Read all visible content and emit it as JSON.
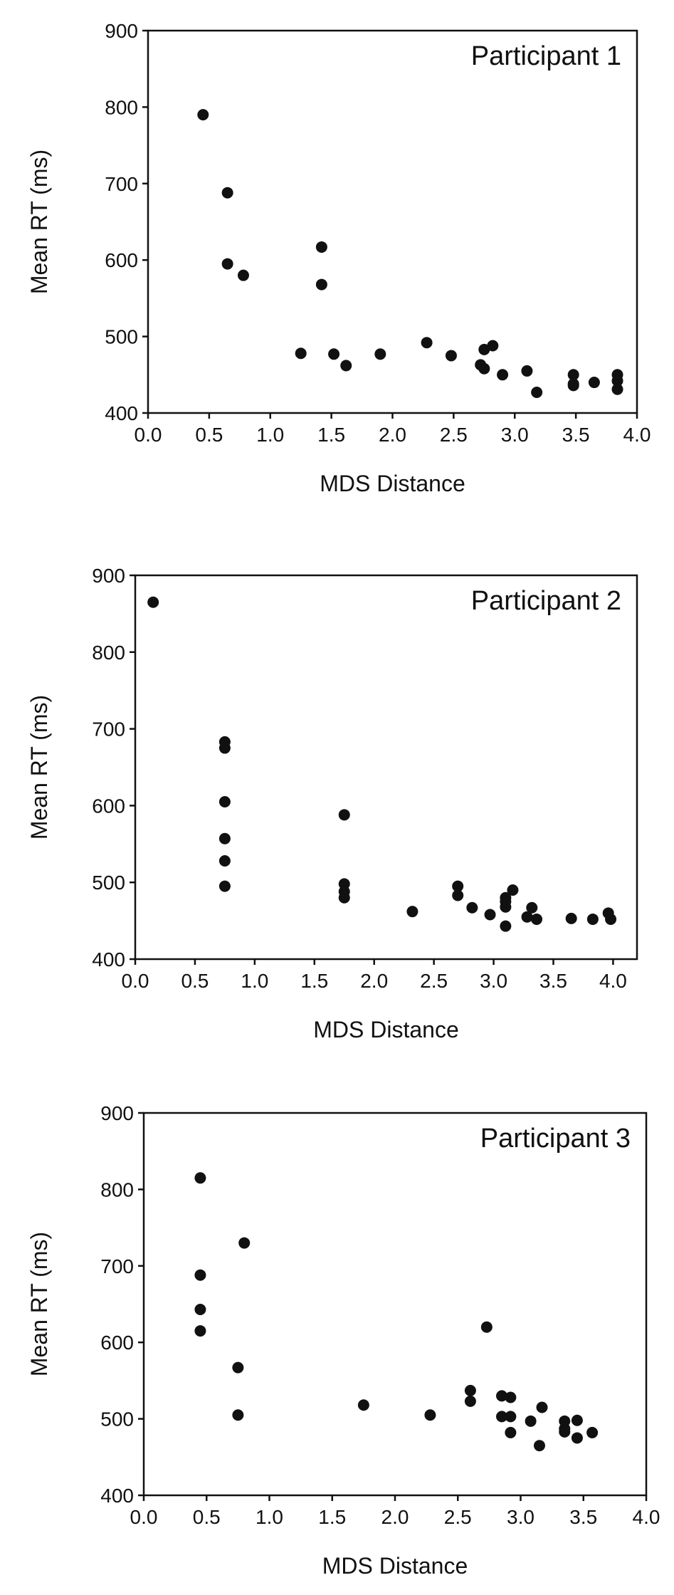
{
  "chart_data": [
    {
      "type": "scatter",
      "title": "Participant 1",
      "xlabel": "MDS Distance",
      "ylabel": "Mean RT (ms)",
      "xlim": [
        0,
        4
      ],
      "ylim": [
        400,
        900
      ],
      "xticks": [
        "0.0",
        "0.5",
        "1.0",
        "1.5",
        "2.0",
        "2.5",
        "3.0",
        "3.5",
        "4.0"
      ],
      "yticks": [
        "400",
        "500",
        "600",
        "700",
        "800",
        "900"
      ],
      "grid": false,
      "points": [
        [
          0.45,
          790
        ],
        [
          0.65,
          688
        ],
        [
          0.65,
          595
        ],
        [
          0.78,
          580
        ],
        [
          1.25,
          478
        ],
        [
          1.42,
          617
        ],
        [
          1.42,
          568
        ],
        [
          1.52,
          477
        ],
        [
          1.62,
          462
        ],
        [
          1.9,
          477
        ],
        [
          2.28,
          492
        ],
        [
          2.48,
          475
        ],
        [
          2.72,
          463
        ],
        [
          2.75,
          483
        ],
        [
          2.75,
          458
        ],
        [
          2.82,
          488
        ],
        [
          2.9,
          450
        ],
        [
          3.1,
          455
        ],
        [
          3.18,
          427
        ],
        [
          3.48,
          450
        ],
        [
          3.48,
          438
        ],
        [
          3.48,
          436
        ],
        [
          3.65,
          440
        ],
        [
          3.84,
          450
        ],
        [
          3.84,
          442
        ],
        [
          3.84,
          431
        ]
      ]
    },
    {
      "type": "scatter",
      "title": "Participant 2",
      "xlabel": "MDS Distance",
      "ylabel": "Mean RT (ms)",
      "xlim": [
        0,
        4.2
      ],
      "ylim": [
        400,
        900
      ],
      "xticks": [
        "0.0",
        "0.5",
        "1.0",
        "1.5",
        "2.0",
        "2.5",
        "3.0",
        "3.5",
        "4.0"
      ],
      "yticks": [
        "400",
        "500",
        "600",
        "700",
        "800",
        "900"
      ],
      "grid": false,
      "points": [
        [
          0.15,
          865
        ],
        [
          0.75,
          683
        ],
        [
          0.75,
          675
        ],
        [
          0.75,
          605
        ],
        [
          0.75,
          557
        ],
        [
          0.75,
          528
        ],
        [
          0.75,
          495
        ],
        [
          1.75,
          588
        ],
        [
          1.75,
          498
        ],
        [
          1.75,
          488
        ],
        [
          1.75,
          480
        ],
        [
          2.32,
          462
        ],
        [
          2.7,
          495
        ],
        [
          2.7,
          483
        ],
        [
          2.82,
          467
        ],
        [
          2.97,
          458
        ],
        [
          3.1,
          480
        ],
        [
          3.1,
          475
        ],
        [
          3.1,
          468
        ],
        [
          3.1,
          443
        ],
        [
          3.16,
          490
        ],
        [
          3.28,
          455
        ],
        [
          3.32,
          467
        ],
        [
          3.36,
          452
        ],
        [
          3.65,
          453
        ],
        [
          3.83,
          452
        ],
        [
          3.96,
          460
        ],
        [
          3.98,
          452
        ]
      ]
    },
    {
      "type": "scatter",
      "title": "Participant 3",
      "xlabel": "MDS Distance",
      "ylabel": "Mean RT (ms)",
      "xlim": [
        0,
        4
      ],
      "ylim": [
        400,
        900
      ],
      "xticks": [
        "0.0",
        "0.5",
        "1.0",
        "1.5",
        "2.0",
        "2.5",
        "3.0",
        "3.5",
        "4.0"
      ],
      "yticks": [
        "400",
        "500",
        "600",
        "700",
        "800",
        "900"
      ],
      "grid": false,
      "points": [
        [
          0.45,
          815
        ],
        [
          0.45,
          688
        ],
        [
          0.45,
          643
        ],
        [
          0.45,
          615
        ],
        [
          0.75,
          567
        ],
        [
          0.75,
          505
        ],
        [
          0.8,
          730
        ],
        [
          1.75,
          518
        ],
        [
          2.28,
          505
        ],
        [
          2.6,
          537
        ],
        [
          2.6,
          523
        ],
        [
          2.73,
          620
        ],
        [
          2.85,
          530
        ],
        [
          2.85,
          503
        ],
        [
          2.92,
          528
        ],
        [
          2.92,
          503
        ],
        [
          2.92,
          482
        ],
        [
          3.08,
          497
        ],
        [
          3.15,
          465
        ],
        [
          3.17,
          515
        ],
        [
          3.35,
          497
        ],
        [
          3.35,
          487
        ],
        [
          3.35,
          483
        ],
        [
          3.45,
          498
        ],
        [
          3.45,
          475
        ],
        [
          3.57,
          482
        ]
      ]
    }
  ]
}
